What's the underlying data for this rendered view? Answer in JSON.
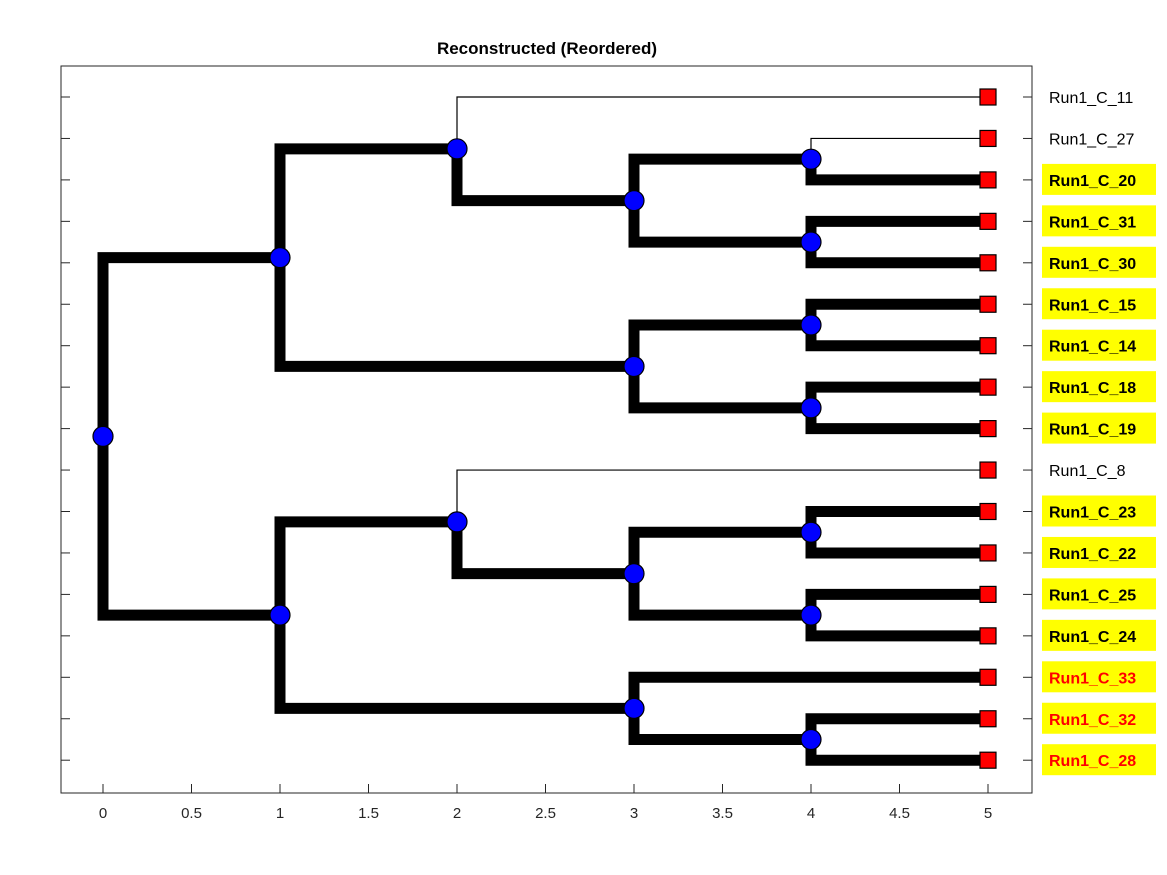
{
  "chart_data": {
    "type": "dendrogram",
    "title": "Reconstructed (Reordered)",
    "xlim": [
      -0.25,
      5.25
    ],
    "x_ticks": [
      "0",
      "0.5",
      "1",
      "1.5",
      "2",
      "2.5",
      "3",
      "3.5",
      "4",
      "4.5",
      "5"
    ],
    "x_tick_values": [
      0,
      0.5,
      1,
      1.5,
      2,
      2.5,
      3,
      3.5,
      4,
      4.5,
      5
    ],
    "grid": false,
    "colors": {
      "branch": "#000000",
      "internal_node": "#0000ff",
      "leaf_node": "#ff0000",
      "highlight_background": "#ffff00",
      "highlight_red_text": "#ff0000"
    },
    "leaves": [
      {
        "label": "Run1_C_11",
        "style": "plain"
      },
      {
        "label": "Run1_C_27",
        "style": "plain"
      },
      {
        "label": "Run1_C_20",
        "style": "highlight"
      },
      {
        "label": "Run1_C_31",
        "style": "highlight"
      },
      {
        "label": "Run1_C_30",
        "style": "highlight"
      },
      {
        "label": "Run1_C_15",
        "style": "highlight"
      },
      {
        "label": "Run1_C_14",
        "style": "highlight"
      },
      {
        "label": "Run1_C_18",
        "style": "highlight"
      },
      {
        "label": "Run1_C_19",
        "style": "highlight"
      },
      {
        "label": "Run1_C_8",
        "style": "plain"
      },
      {
        "label": "Run1_C_23",
        "style": "highlight"
      },
      {
        "label": "Run1_C_22",
        "style": "highlight"
      },
      {
        "label": "Run1_C_25",
        "style": "highlight"
      },
      {
        "label": "Run1_C_24",
        "style": "highlight"
      },
      {
        "label": "Run1_C_33",
        "style": "highlight_red"
      },
      {
        "label": "Run1_C_32",
        "style": "highlight_red"
      },
      {
        "label": "Run1_C_28",
        "style": "highlight_red"
      }
    ],
    "tree": {
      "x": 0,
      "children": [
        {
          "x": 1,
          "children": [
            {
              "x": 2,
              "children": [
                {
                  "leaf": 0,
                  "thin": true
                },
                {
                  "x": 3,
                  "children": [
                    {
                      "x": 4,
                      "children": [
                        {
                          "leaf": 1,
                          "thin": true
                        },
                        {
                          "leaf": 2
                        }
                      ]
                    },
                    {
                      "x": 4,
                      "children": [
                        {
                          "leaf": 3
                        },
                        {
                          "leaf": 4
                        }
                      ]
                    }
                  ]
                }
              ]
            },
            {
              "x": 3,
              "children": [
                {
                  "x": 4,
                  "children": [
                    {
                      "leaf": 5
                    },
                    {
                      "leaf": 6
                    }
                  ]
                },
                {
                  "x": 4,
                  "children": [
                    {
                      "leaf": 7
                    },
                    {
                      "leaf": 8
                    }
                  ]
                }
              ]
            }
          ]
        },
        {
          "x": 1,
          "children": [
            {
              "x": 2,
              "children": [
                {
                  "leaf": 9,
                  "thin": true
                },
                {
                  "x": 3,
                  "children": [
                    {
                      "x": 4,
                      "children": [
                        {
                          "leaf": 10
                        },
                        {
                          "leaf": 11
                        }
                      ]
                    },
                    {
                      "x": 4,
                      "children": [
                        {
                          "leaf": 12
                        },
                        {
                          "leaf": 13
                        }
                      ]
                    }
                  ]
                }
              ]
            },
            {
              "x": 3,
              "children": [
                {
                  "leaf": 14
                },
                {
                  "x": 4,
                  "children": [
                    {
                      "leaf": 15
                    },
                    {
                      "leaf": 16
                    }
                  ]
                }
              ]
            }
          ]
        }
      ]
    }
  }
}
